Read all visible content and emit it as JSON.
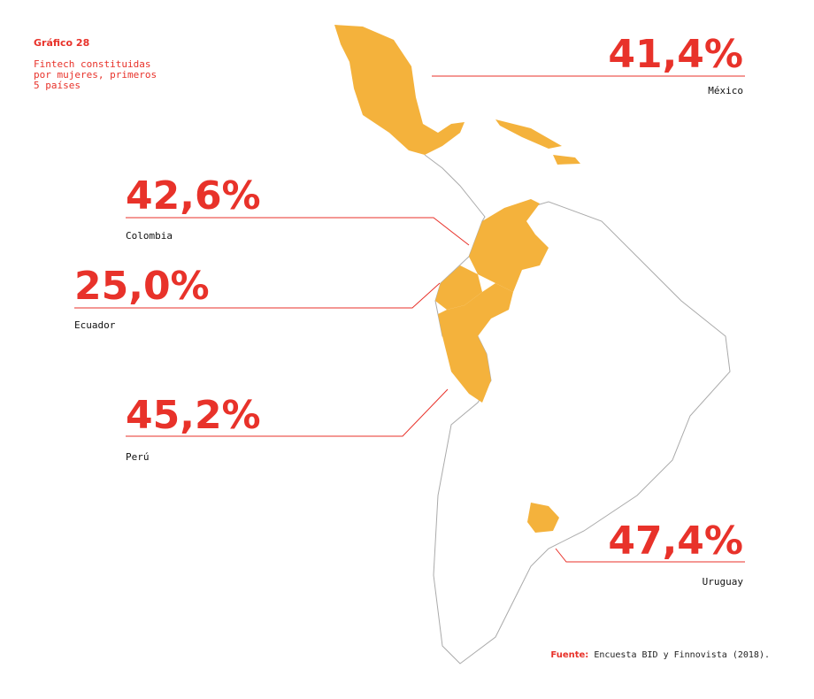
{
  "chart_data": {
    "type": "map",
    "label": "Gráfico 28",
    "title": [
      "Fintech constituidas",
      "por mujeres, primeros",
      "5 países"
    ],
    "categories": [
      "México",
      "Colombia",
      "Ecuador",
      "Perú",
      "Uruguay"
    ],
    "values": [
      41.4,
      42.6,
      25.0,
      45.2,
      47.4
    ],
    "value_labels": [
      "41,4%",
      "42,6%",
      "25,0%",
      "45,2%",
      "47,4%"
    ],
    "color": "#f4b23c",
    "label_color": "#e8322a",
    "source_label": "Fuente:",
    "source": "Encuesta BID y Finnovista (2018)."
  }
}
